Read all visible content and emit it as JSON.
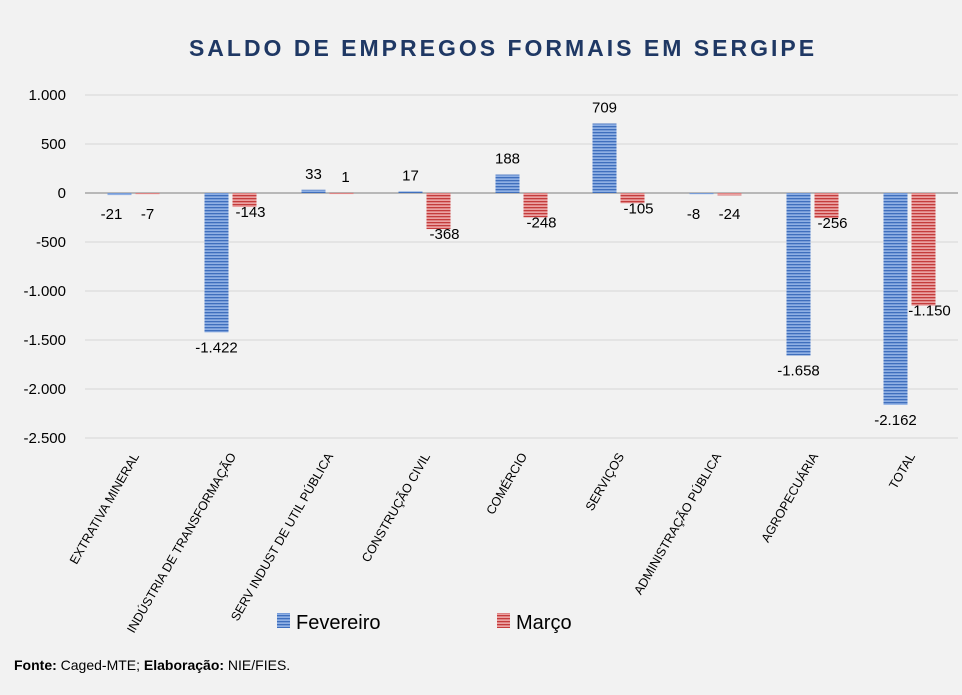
{
  "chart_data": {
    "type": "bar",
    "title": "SALDO DE EMPREGOS FORMAIS EM SERGIPE",
    "categories": [
      "EXTRATIVA MINERAL",
      "INDÚSTRIA DE TRANSFORMAÇÃO",
      "SERV INDUST DE UTIL PÚBLICA",
      "CONSTRUÇÃO CIVIL",
      "COMÉRCIO",
      "SERVIÇOS",
      "ADMINISTRAÇÃO PÚBLICA",
      "AGROPECUÁRIA",
      "TOTAL"
    ],
    "series": [
      {
        "name": "Fevereiro",
        "color": "#4f7ec9",
        "values": [
          -21,
          -1422,
          33,
          17,
          188,
          709,
          -8,
          -1658,
          -2162
        ],
        "labels": [
          "-21",
          "-1.422",
          "33",
          "17",
          "188",
          "709",
          "-8",
          "-1.658",
          "-2.162"
        ]
      },
      {
        "name": "Março",
        "color": "#cc4f4f",
        "values": [
          -7,
          -143,
          1,
          -368,
          -248,
          -105,
          -24,
          -256,
          -1150
        ],
        "labels": [
          "-7",
          "-143",
          "1",
          "-368",
          "-248",
          "-105",
          "-24",
          "-256",
          "-1.150"
        ]
      }
    ],
    "ylim": [
      -2500,
      1000
    ],
    "yticks": [
      1000,
      500,
      0,
      -500,
      -1000,
      -1500,
      -2000,
      -2500
    ],
    "ytick_labels": [
      "1.000",
      "500",
      "0",
      "-500",
      "-1.000",
      "-1.500",
      "-2.000",
      "-2.500"
    ],
    "grid": true,
    "legend": "bottom"
  },
  "source": {
    "fonte_label": "Fonte:",
    "fonte_value": " Caged-MTE; ",
    "elab_label": "Elaboração:",
    "elab_value": " NIE/FIES."
  }
}
